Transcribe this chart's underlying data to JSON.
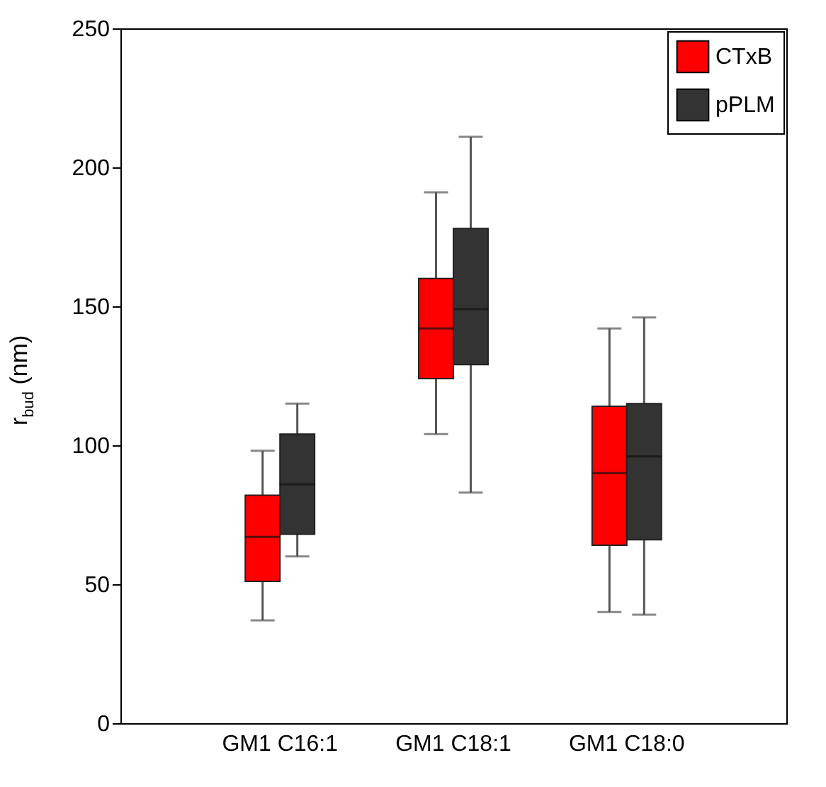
{
  "chart_data": {
    "type": "box",
    "ylabel": "r$_{bud}$ (nm)",
    "categories": [
      "GM1 C16:1",
      "GM1 C18:1",
      "GM1 C18:0"
    ],
    "ylim": [
      0,
      250
    ],
    "yticks": [
      0,
      50,
      100,
      150,
      200,
      250
    ],
    "grid": false,
    "legend": "top right",
    "series": [
      {
        "name": "CTxB",
        "color": "#ff0000",
        "boxes": [
          {
            "low": 37,
            "q1": 51,
            "median": 67,
            "q3": 82,
            "high": 98
          },
          {
            "low": 104,
            "q1": 124,
            "median": 142,
            "q3": 160,
            "high": 191
          },
          {
            "low": 40,
            "q1": 64,
            "median": 90,
            "q3": 114,
            "high": 142
          }
        ]
      },
      {
        "name": "pPLM",
        "color": "#333333",
        "boxes": [
          {
            "low": 60,
            "q1": 68,
            "median": 86,
            "q3": 104,
            "high": 115
          },
          {
            "low": 83,
            "q1": 129,
            "median": 149,
            "q3": 178,
            "high": 211
          },
          {
            "low": 39,
            "q1": 66,
            "median": 96,
            "q3": 115,
            "high": 146
          }
        ]
      }
    ]
  }
}
